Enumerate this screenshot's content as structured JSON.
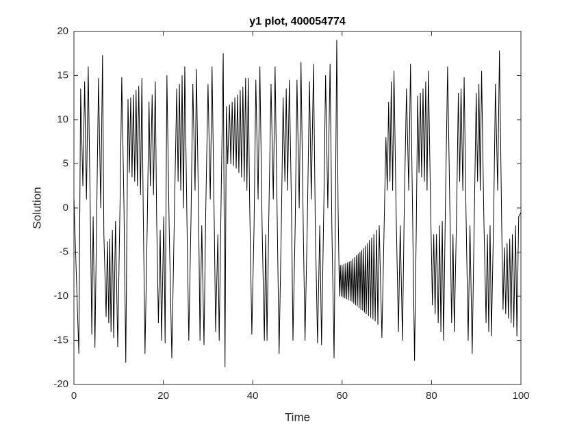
{
  "chart_data": {
    "type": "line",
    "title": "y1 plot, 400054774",
    "xlabel": "Time",
    "ylabel": "Solution",
    "xlim": [
      0,
      100
    ],
    "xticks": [
      0,
      20,
      40,
      60,
      80,
      100
    ],
    "ylim": [
      -20,
      20
    ],
    "yticks": [
      -20,
      -15,
      -10,
      -5,
      0,
      5,
      10,
      15,
      20
    ],
    "grid": false,
    "color": "#000000",
    "x": [
      0,
      1.1,
      1.5,
      2.0,
      2.4,
      2.8,
      3.2,
      3.7,
      4.0,
      4.3,
      4.7,
      5.5,
      6.0,
      6.4,
      6.7,
      7.2,
      7.5,
      7.8,
      8.0,
      8.3,
      8.6,
      8.9,
      9.3,
      9.8,
      10.3,
      10.7,
      11.2,
      11.6,
      12.1,
      12.4,
      12.7,
      13.0,
      13.3,
      13.6,
      13.9,
      14.2,
      14.5,
      14.9,
      15.2,
      15.5,
      15.9,
      16.4,
      16.8,
      17.1,
      17.5,
      17.8,
      18.2,
      18.5,
      18.9,
      19.3,
      19.6,
      20.1,
      20.4,
      20.8,
      21.3,
      21.9,
      22.5,
      23.0,
      23.3,
      23.6,
      23.9,
      24.2,
      24.5,
      24.8,
      25.3,
      25.7,
      26.2,
      26.6,
      27.1,
      27.4,
      27.9,
      28.2,
      28.6,
      29.1,
      29.5,
      30.0,
      30.5,
      30.9,
      31.4,
      31.7,
      32.2,
      32.5,
      32.9,
      33.4,
      33.8,
      34.1,
      34.4,
      34.8,
      35.1,
      35.4,
      35.7,
      36.0,
      36.3,
      36.6,
      36.9,
      37.2,
      37.5,
      37.8,
      38.1,
      38.4,
      38.7,
      39.0,
      39.3,
      39.8,
      40.3,
      40.7,
      41.2,
      41.6,
      42.1,
      42.6,
      42.9,
      43.2,
      43.6,
      44.1,
      44.6,
      45.0,
      45.5,
      45.9,
      46.4,
      46.8,
      47.2,
      47.5,
      47.8,
      48.2,
      48.7,
      49.0,
      49.5,
      49.9,
      50.4,
      50.8,
      51.3,
      51.7,
      52.2,
      52.7,
      53.1,
      53.6,
      54.0,
      54.5,
      55.0,
      55.4,
      55.9,
      56.3,
      56.8,
      57.3,
      57.7,
      58.2,
      58.5,
      58.8,
      59.1,
      59.4,
      59.6,
      59.8,
      60.0,
      60.2,
      60.4,
      60.6,
      60.8,
      61.0,
      61.2,
      61.4,
      61.6,
      61.8,
      62.0,
      62.2,
      62.4,
      62.6,
      62.8,
      63.0,
      63.2,
      63.4,
      63.6,
      63.8,
      64.0,
      64.2,
      64.4,
      64.6,
      64.8,
      65.0,
      65.2,
      65.4,
      65.7,
      65.9,
      66.1,
      66.4,
      66.6,
      66.9,
      67.1,
      67.4,
      67.7,
      68.0,
      68.3,
      68.9,
      69.4,
      69.8,
      70.1,
      70.4,
      70.7,
      71.0,
      71.3,
      71.6,
      72.1,
      72.6,
      73.0,
      73.5,
      73.9,
      74.4,
      74.9,
      75.3,
      75.8,
      76.2,
      76.6,
      76.9,
      77.2,
      77.5,
      77.8,
      78.1,
      78.4,
      78.7,
      79.0,
      79.3,
      79.8,
      80.2,
      80.5,
      80.8,
      81.1,
      81.5,
      81.8,
      82.1,
      82.4,
      82.7,
      83.1,
      83.6,
      84.1,
      84.5,
      84.8,
      85.1,
      85.6,
      86.0,
      86.3,
      86.6,
      87.0,
      87.3,
      87.7,
      88.2,
      88.6,
      89.1,
      89.6,
      90.0,
      90.3,
      90.6,
      90.9,
      91.2,
      91.7,
      92.2,
      92.5,
      92.8,
      93.1,
      93.4,
      93.9,
      94.3,
      94.8,
      95.2,
      95.7,
      96.0,
      96.3,
      96.6,
      96.9,
      97.2,
      97.5,
      97.8,
      98.1,
      98.4,
      98.8,
      99.1,
      99.5,
      100
    ],
    "values": [
      1,
      -16.5,
      13.5,
      2.5,
      14.3,
      1,
      16,
      -2,
      -14.3,
      -1,
      -15.8,
      14.7,
      0,
      17.3,
      -3,
      -12.3,
      -3.8,
      -13,
      -3.5,
      -14,
      -2.5,
      -14.7,
      -1.5,
      -15.7,
      0,
      14.8,
      0,
      -17.5,
      12.3,
      4,
      12.5,
      3.5,
      12.8,
      3,
      13.3,
      2.5,
      13.8,
      1.5,
      14.7,
      0,
      -16.5,
      -2,
      12,
      2.5,
      12.8,
      1.5,
      14.3,
      -1,
      -13,
      -2.5,
      -15,
      -1,
      -15.3,
      15,
      -2,
      -17,
      0,
      13.5,
      3,
      14,
      2,
      15,
      0,
      16,
      -2,
      -15,
      -1,
      14,
      2,
      15.7,
      -1,
      -15,
      -2,
      -15.5,
      0,
      14,
      1,
      16,
      -2,
      -14,
      -3,
      -15,
      0,
      17.5,
      -18,
      11.5,
      5,
      11.7,
      5,
      12,
      4.8,
      12.5,
      4.5,
      12.8,
      4,
      13.3,
      3.5,
      13.7,
      3,
      14.7,
      2,
      14.7,
      1,
      -14.3,
      -2,
      14.5,
      1,
      16,
      -2,
      -15,
      -3,
      -15,
      -1,
      14,
      1,
      16,
      -2,
      -16.5,
      -2,
      12.5,
      3,
      13.5,
      2,
      14.5,
      -1,
      -15,
      -2,
      14.5,
      0,
      16.5,
      -2,
      -15,
      -2,
      14.3,
      1,
      16.3,
      -2,
      -15.3,
      -2,
      -15.5,
      0,
      15,
      0,
      16.3,
      -2,
      -17,
      0,
      19,
      0,
      -10,
      -6.5,
      -10.0,
      -6.5,
      -10.1,
      -6.4,
      -10.2,
      -6.3,
      -10.3,
      -6.2,
      -10.4,
      -6.1,
      -10.5,
      -6.0,
      -10.6,
      -5.8,
      -10.8,
      -5.6,
      -11.0,
      -5.4,
      -11.1,
      -5.2,
      -11.3,
      -5.0,
      -11.5,
      -4.8,
      -11.6,
      -4.6,
      -11.8,
      -4.3,
      -12.0,
      -4.0,
      -12.2,
      -3.7,
      -12.4,
      -3.4,
      -12.6,
      -3.0,
      -12.8,
      -2.5,
      -13.2,
      -2.0,
      -14.7,
      -2,
      8,
      2,
      12,
      3,
      14.3,
      2,
      15.5,
      -1,
      -14,
      -2,
      -15,
      0,
      13.5,
      2,
      16.3,
      -2,
      -17.3,
      -2,
      12.7,
      4,
      13,
      3.5,
      13.5,
      3,
      14.3,
      2,
      15.5,
      0,
      -11,
      -3,
      -12,
      -3,
      -13,
      -2,
      -14,
      -1.5,
      -15,
      0,
      16,
      0,
      -13,
      -3,
      -14,
      -1,
      13,
      3,
      13.5,
      2,
      14.8,
      0,
      -15,
      -2,
      -16.5,
      0,
      13,
      3,
      14,
      2,
      15.5,
      -1,
      -13,
      -3,
      -14,
      -2,
      -14.5,
      -1,
      14,
      2,
      17.8,
      -2,
      -11.5,
      -4.5,
      -12,
      -4,
      -12.5,
      -3.5,
      -13,
      -3,
      -13.5,
      -2,
      -14.5,
      -1,
      -0.5
    ]
  }
}
